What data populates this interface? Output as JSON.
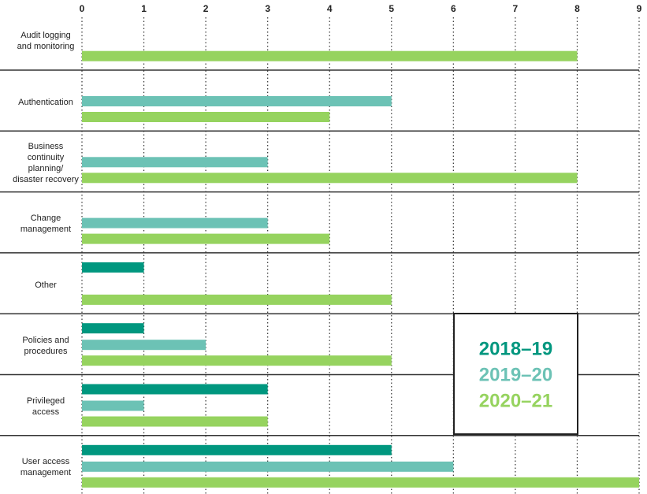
{
  "chart_data": {
    "type": "bar",
    "orientation": "horizontal",
    "categories": [
      "Audit logging\nand monitoring",
      "Authentication",
      "Business\ncontinuity\nplanning/\ndisaster recovery",
      "Change\nmanagement",
      "Other",
      "Policies and\nprocedures",
      "Privileged\naccess",
      "User access\nmanagement"
    ],
    "series": [
      {
        "name": "2018–19",
        "color": "#00977f",
        "values": [
          null,
          null,
          null,
          null,
          1,
          1,
          3,
          5
        ]
      },
      {
        "name": "2019–20",
        "color": "#6cc2b5",
        "values": [
          null,
          5,
          3,
          3,
          null,
          2,
          1,
          6
        ]
      },
      {
        "name": "2020–21",
        "color": "#96d35f",
        "values": [
          8,
          4,
          8,
          4,
          5,
          5,
          3,
          9
        ]
      }
    ],
    "xlim": [
      0,
      9
    ],
    "xticks": [
      0,
      1,
      2,
      3,
      4,
      5,
      6,
      7,
      8,
      9
    ],
    "grid": true,
    "legend": "lower right"
  }
}
